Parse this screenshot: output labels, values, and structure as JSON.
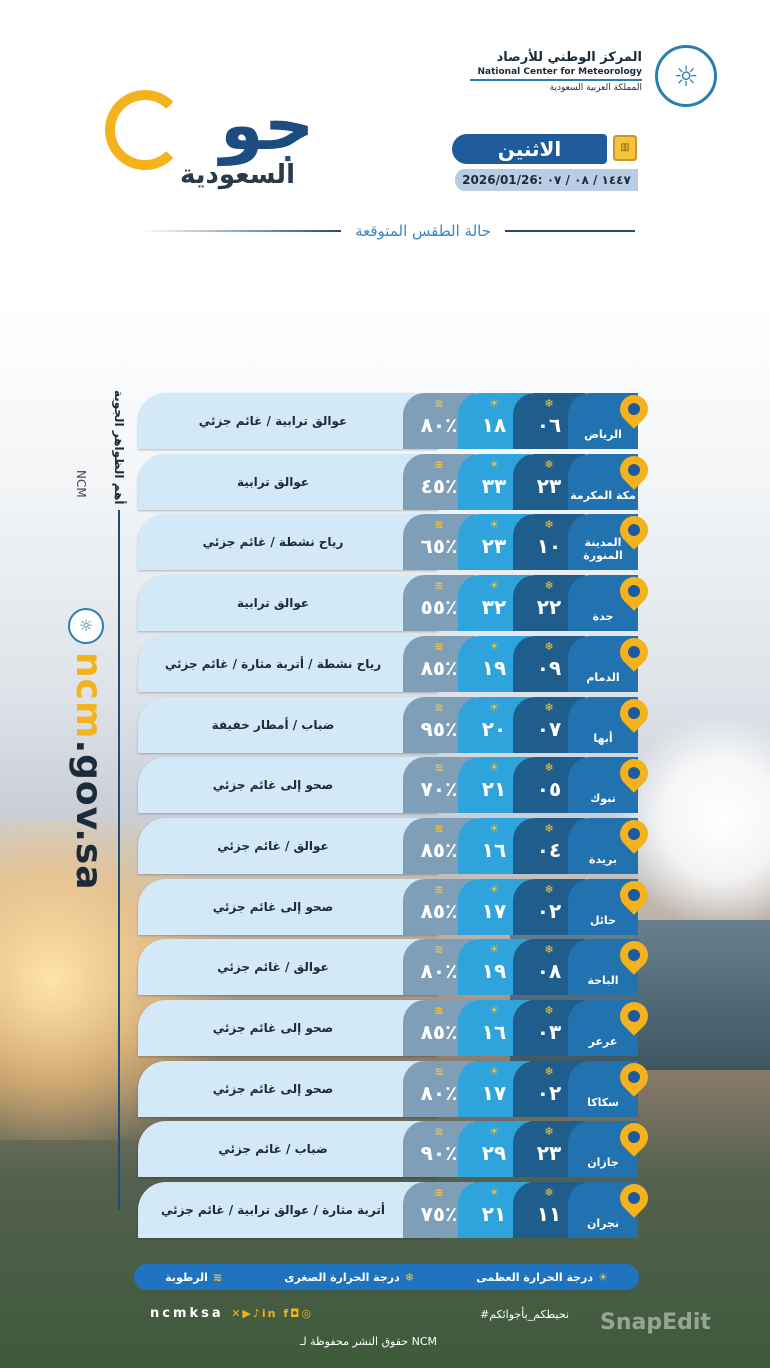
{
  "org": {
    "name_ar": "المركز الوطني للأرصاد",
    "name_en": "National Center for Meteorology",
    "country": "المملكة العربية السعودية"
  },
  "brand": {
    "main": "جو",
    "sub": "السعودية"
  },
  "day": "الاثنين",
  "date": "2026/01/26: ١٤٤٧ / ٠٨ / ٠٧",
  "title": "حالة الطقس المتوقعة",
  "sidebar": {
    "heading": "أهم الظواهر الجوية",
    "ncm": "NCM",
    "url_a": "ncm",
    "url_b": ".gov.sa"
  },
  "icons": {
    "humidity": "humidity-icon",
    "max": "sun-thermometer-icon",
    "min": "cold-thermometer-icon",
    "city": "location-pin-icon"
  },
  "colors": {
    "accent": "#f4b21c",
    "primary": "#1f5b9a",
    "max": "#2ea3dc",
    "min": "#1e5d8c",
    "humidity": "#7f9fb8"
  },
  "rows": [
    {
      "city": "الرياض",
      "min": "٠٦",
      "max": "١٨",
      "hum": "٨٠٪",
      "cond": "عوالق ترابية / غائم جزئي"
    },
    {
      "city": "مكة المكرمة",
      "min": "٢٣",
      "max": "٣٣",
      "hum": "٤٥٪",
      "cond": "عوالق ترابية"
    },
    {
      "city": "المدينة المنورة",
      "min": "١٠",
      "max": "٢٣",
      "hum": "٦٥٪",
      "cond": "رياح نشطة / غائم جزئي"
    },
    {
      "city": "جدة",
      "min": "٢٢",
      "max": "٣٢",
      "hum": "٥٥٪",
      "cond": "عوالق ترابية"
    },
    {
      "city": "الدمام",
      "min": "٠٩",
      "max": "١٩",
      "hum": "٨٥٪",
      "cond": "رياح نشطة / أتربة مثارة / غائم جزئي"
    },
    {
      "city": "أبها",
      "min": "٠٧",
      "max": "٢٠",
      "hum": "٩٥٪",
      "cond": "ضباب / أمطار خفيفة"
    },
    {
      "city": "تبوك",
      "min": "٠٥",
      "max": "٢١",
      "hum": "٧٠٪",
      "cond": "صحو إلى غائم جزئي"
    },
    {
      "city": "بريدة",
      "min": "٠٤",
      "max": "١٦",
      "hum": "٨٥٪",
      "cond": "عوالق / غائم جزئي"
    },
    {
      "city": "حائل",
      "min": "٠٢",
      "max": "١٧",
      "hum": "٨٥٪",
      "cond": "صحو إلى غائم جزئي"
    },
    {
      "city": "الباحة",
      "min": "٠٨",
      "max": "١٩",
      "hum": "٨٠٪",
      "cond": "عوالق / غائم جزئي"
    },
    {
      "city": "عرعر",
      "min": "٠٣",
      "max": "١٦",
      "hum": "٨٥٪",
      "cond": "صحو إلى غائم جزئي"
    },
    {
      "city": "سكاكا",
      "min": "٠٢",
      "max": "١٧",
      "hum": "٨٠٪",
      "cond": "صحو إلى غائم جزئي"
    },
    {
      "city": "جازان",
      "min": "٢٣",
      "max": "٢٩",
      "hum": "٩٠٪",
      "cond": "ضباب / غائم جزئي"
    },
    {
      "city": "نجران",
      "min": "١١",
      "max": "٢١",
      "hum": "٧٥٪",
      "cond": "أتربة مثارة / عوالق ترابية / غائم جزئي"
    }
  ],
  "legend": {
    "max": "درجة الحرارة العظمى",
    "min": "درجة الحرارة الصغرى",
    "hum": "الرطوبة"
  },
  "footer": {
    "handle": "ncmksa",
    "hashtag": "#نحيطكم_بأجوائكم",
    "copyright": "حقوق النشر محفوظة لـ NCM",
    "watermark": "SnapEdit"
  }
}
